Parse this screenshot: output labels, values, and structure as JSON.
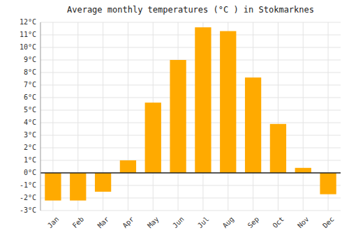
{
  "chart_data": {
    "type": "bar",
    "title": "Average monthly temperatures (°C ) in Stokmarknes",
    "categories": [
      "Jan",
      "Feb",
      "Mar",
      "Apr",
      "May",
      "Jun",
      "Jul",
      "Aug",
      "Sep",
      "Oct",
      "Nov",
      "Dec"
    ],
    "values": [
      -2.2,
      -2.2,
      -1.5,
      1.0,
      5.6,
      9.0,
      11.6,
      11.3,
      7.6,
      3.9,
      0.4,
      -1.7
    ],
    "color": "#FFAA00",
    "ylim": [
      -3,
      12
    ],
    "yticks": [
      {
        "value": -3,
        "label": "-3°C"
      },
      {
        "value": -2,
        "label": "-2°C"
      },
      {
        "value": -1,
        "label": "-1°C"
      },
      {
        "value": 0,
        "label": "0°C"
      },
      {
        "value": 1,
        "label": "1°C"
      },
      {
        "value": 2,
        "label": "2°C"
      },
      {
        "value": 3,
        "label": "3°C"
      },
      {
        "value": 4,
        "label": "4°C"
      },
      {
        "value": 5,
        "label": "5°C"
      },
      {
        "value": 6,
        "label": "6°C"
      },
      {
        "value": 7,
        "label": "7°C"
      },
      {
        "value": 8,
        "label": "8°C"
      },
      {
        "value": 9,
        "label": "9°C"
      },
      {
        "value": 10,
        "label": "10°C"
      },
      {
        "value": 11,
        "label": "11°C"
      },
      {
        "value": 12,
        "label": "12°C"
      }
    ],
    "grid": true
  }
}
